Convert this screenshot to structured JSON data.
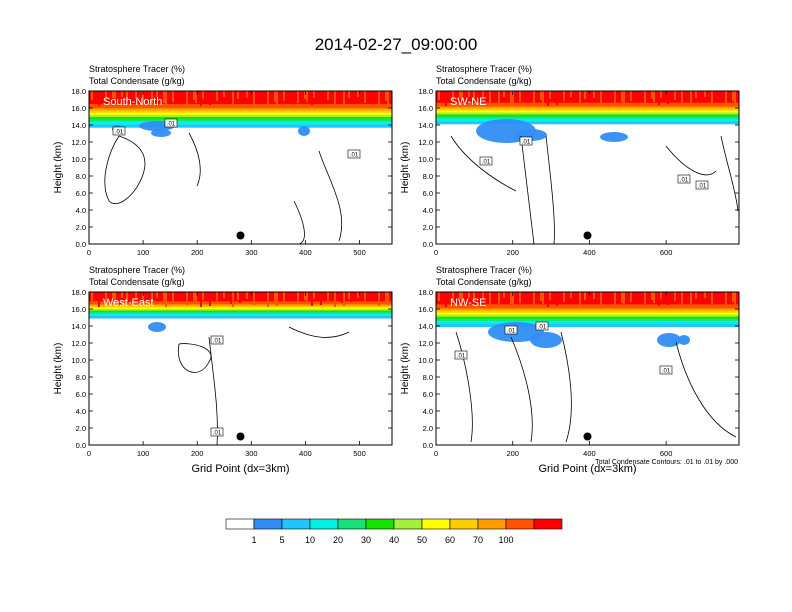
{
  "title": "2014-02-27_09:00:00",
  "footer_note": "Total Condensate Contours: .01 to .01 by .000",
  "colors": {
    "levels": [
      "#ffffff",
      "#2f8ef5",
      "#21c6ff",
      "#00f2e2",
      "#16e277",
      "#16e500",
      "#a3f13a",
      "#ffff00",
      "#ffce00",
      "#ff9d00",
      "#ff5300",
      "#ff0000"
    ],
    "background": "#ffffff",
    "contour": "#000000"
  },
  "colorbar": {
    "labels": [
      "1",
      "5",
      "10",
      "20",
      "30",
      "40",
      "50",
      "60",
      "70",
      "100"
    ]
  },
  "chart_data": [
    {
      "type": "heatmap",
      "panel_label": "South-North",
      "line1": "Stratosphere Tracer   (%)",
      "line2": "Total Condensate   (g/kg)",
      "ylabel": "Height (km)",
      "xlabel": "",
      "xlim": [
        0,
        560
      ],
      "ylim": [
        0,
        18
      ],
      "xticks": [
        "0",
        "100",
        "200",
        "300",
        "400",
        "500"
      ],
      "yticks": [
        "0.0",
        "2.0",
        "4.0",
        "6.0",
        "8.0",
        "10.0",
        "12.0",
        "14.0",
        "16.0",
        "18.0"
      ],
      "contour_labels": [
        ".01",
        ".01",
        ".01"
      ],
      "marker": {
        "x": 280,
        "y": 1.0
      },
      "tropopause_km": 13.8
    },
    {
      "type": "heatmap",
      "panel_label": "SW-NE",
      "line1": "Stratosphere Tracer   (%)",
      "line2": "Total Condensate   (g/kg)",
      "ylabel": "Height (km)",
      "xlabel": "",
      "xlim": [
        0,
        790
      ],
      "ylim": [
        0,
        18
      ],
      "xticks": [
        "0",
        "200",
        "400",
        "600"
      ],
      "yticks": [
        "0.0",
        "2.0",
        "4.0",
        "6.0",
        "8.0",
        "10.0",
        "12.0",
        "14.0",
        "16.0",
        "18.0"
      ],
      "contour_labels": [
        ".01",
        ".01",
        ".01",
        ".01"
      ],
      "marker": {
        "x": 395,
        "y": 1.0
      },
      "tropopause_km": 14.2
    },
    {
      "type": "heatmap",
      "panel_label": "West-East",
      "line1": "Stratosphere Tracer   (%)",
      "line2": "Total Condensate   (g/kg)",
      "ylabel": "Height (km)",
      "xlabel": "Grid Point (dx=3km)",
      "xlim": [
        0,
        560
      ],
      "ylim": [
        0,
        18
      ],
      "xticks": [
        "0",
        "100",
        "200",
        "300",
        "400",
        "500"
      ],
      "yticks": [
        "0.0",
        "2.0",
        "4.0",
        "6.0",
        "8.0",
        "10.0",
        "12.0",
        "14.0",
        "16.0",
        "18.0"
      ],
      "contour_labels": [
        ".01",
        ".01"
      ],
      "marker": {
        "x": 280,
        "y": 1.0
      },
      "tropopause_km": 15.0
    },
    {
      "type": "heatmap",
      "panel_label": "NW-SE",
      "line1": "Stratosphere Tracer   (%)",
      "line2": "Total Condensate   (g/kg)",
      "ylabel": "Height (km)",
      "xlabel": "Grid Point (dx=3km)",
      "xlim": [
        0,
        790
      ],
      "ylim": [
        0,
        18
      ],
      "xticks": [
        "0",
        "200",
        "400",
        "600"
      ],
      "yticks": [
        "0.0",
        "2.0",
        "4.0",
        "6.0",
        "8.0",
        "10.0",
        "12.0",
        "14.0",
        "16.0",
        "18.0"
      ],
      "contour_labels": [
        ".01",
        ".01",
        ".01",
        ".01"
      ],
      "marker": {
        "x": 395,
        "y": 1.0
      },
      "tropopause_km": 14.0
    }
  ]
}
